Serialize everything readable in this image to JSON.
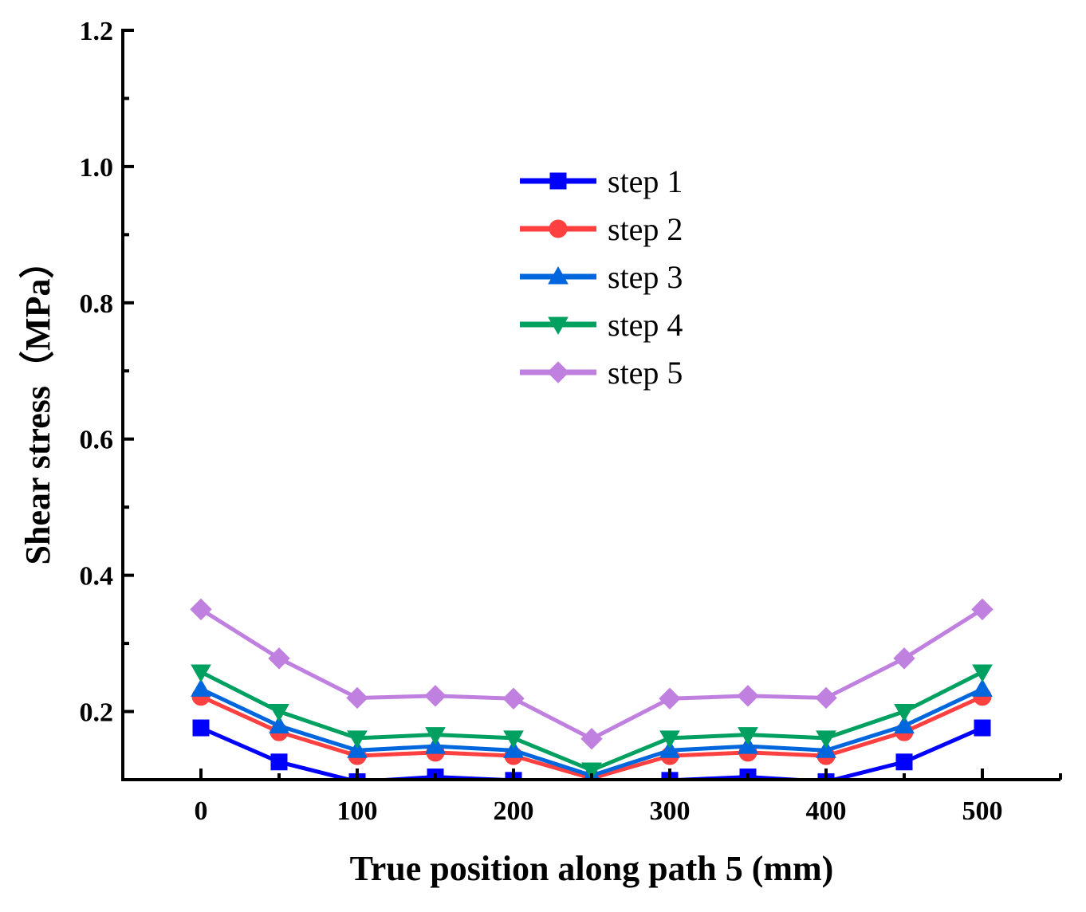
{
  "chart_data": {
    "type": "line",
    "title": "",
    "xlabel": "True position along path 5 (mm)",
    "ylabel": "Shear stress（MPa）",
    "xlim": [
      -50,
      550
    ],
    "ylim": [
      0.1,
      1.2
    ],
    "xticks": [
      0,
      100,
      200,
      300,
      400,
      500
    ],
    "xtick_labels": [
      "0",
      "100",
      "200",
      "300",
      "400",
      "500"
    ],
    "yticks": [
      0.2,
      0.4,
      0.6,
      0.8,
      1.0,
      1.2
    ],
    "ytick_labels": [
      "0.2",
      "0.4",
      "0.6",
      "0.8",
      "1.0",
      "1.2"
    ],
    "grid": false,
    "legend_position": "upper-center",
    "x": [
      0,
      50,
      100,
      150,
      200,
      250,
      300,
      350,
      400,
      450,
      500
    ],
    "series": [
      {
        "name": "step 1",
        "color": "#0000ff",
        "marker": "square",
        "values": [
          0.176,
          0.126,
          0.097,
          0.104,
          0.099,
          0.097,
          0.099,
          0.104,
          0.097,
          0.126,
          0.176
        ]
      },
      {
        "name": "step 2",
        "color": "#ff4040",
        "marker": "circle",
        "values": [
          0.222,
          0.17,
          0.135,
          0.14,
          0.135,
          0.102,
          0.135,
          0.14,
          0.135,
          0.17,
          0.222
        ]
      },
      {
        "name": "step 3",
        "color": "#0066dd",
        "marker": "triangle-up",
        "values": [
          0.233,
          0.179,
          0.143,
          0.149,
          0.143,
          0.106,
          0.143,
          0.149,
          0.143,
          0.179,
          0.233
        ]
      },
      {
        "name": "step 4",
        "color": "#00a060",
        "marker": "triangle-down",
        "values": [
          0.258,
          0.2,
          0.161,
          0.166,
          0.161,
          0.114,
          0.161,
          0.166,
          0.161,
          0.2,
          0.258
        ]
      },
      {
        "name": "step 5",
        "color": "#c080e0",
        "marker": "diamond",
        "values": [
          0.35,
          0.278,
          0.22,
          0.223,
          0.219,
          0.16,
          0.219,
          0.223,
          0.22,
          0.278,
          0.35
        ]
      }
    ]
  }
}
